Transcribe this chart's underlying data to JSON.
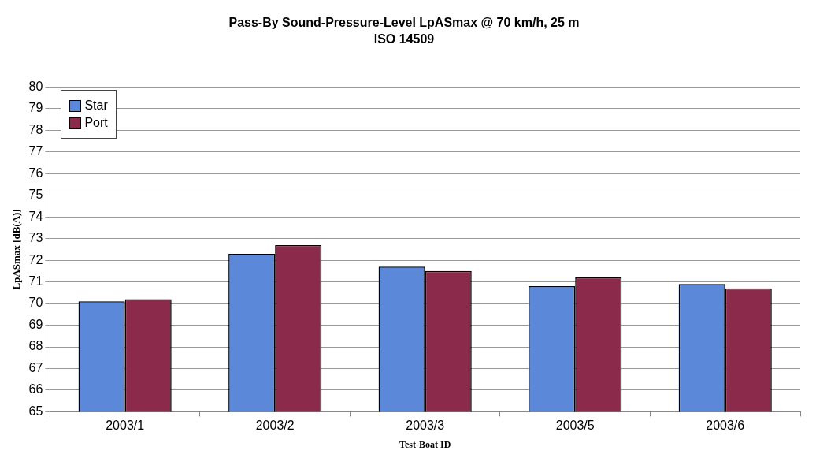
{
  "chart_data": {
    "type": "bar",
    "title": "Pass-By Sound-Pressure-Level LpASmax @ 70 km/h, 25 m",
    "subtitle": "ISO 14509",
    "xlabel": "Test-Boat ID",
    "ylabel": "LpASmax [dB(A)]",
    "categories": [
      "2003/1",
      "2003/2",
      "2003/3",
      "2003/5",
      "2003/6"
    ],
    "series": [
      {
        "name": "Star",
        "color": "#5b88d8",
        "values": [
          70.1,
          72.3,
          71.7,
          70.8,
          70.9
        ]
      },
      {
        "name": "Port",
        "color": "#8c2a4c",
        "values": [
          70.2,
          72.7,
          71.5,
          71.2,
          70.7
        ]
      }
    ],
    "ylim": [
      65,
      80
    ],
    "yticks": [
      65,
      66,
      67,
      68,
      69,
      70,
      71,
      72,
      73,
      74,
      75,
      76,
      77,
      78,
      79,
      80
    ],
    "grid": "y",
    "legend": "top left"
  }
}
